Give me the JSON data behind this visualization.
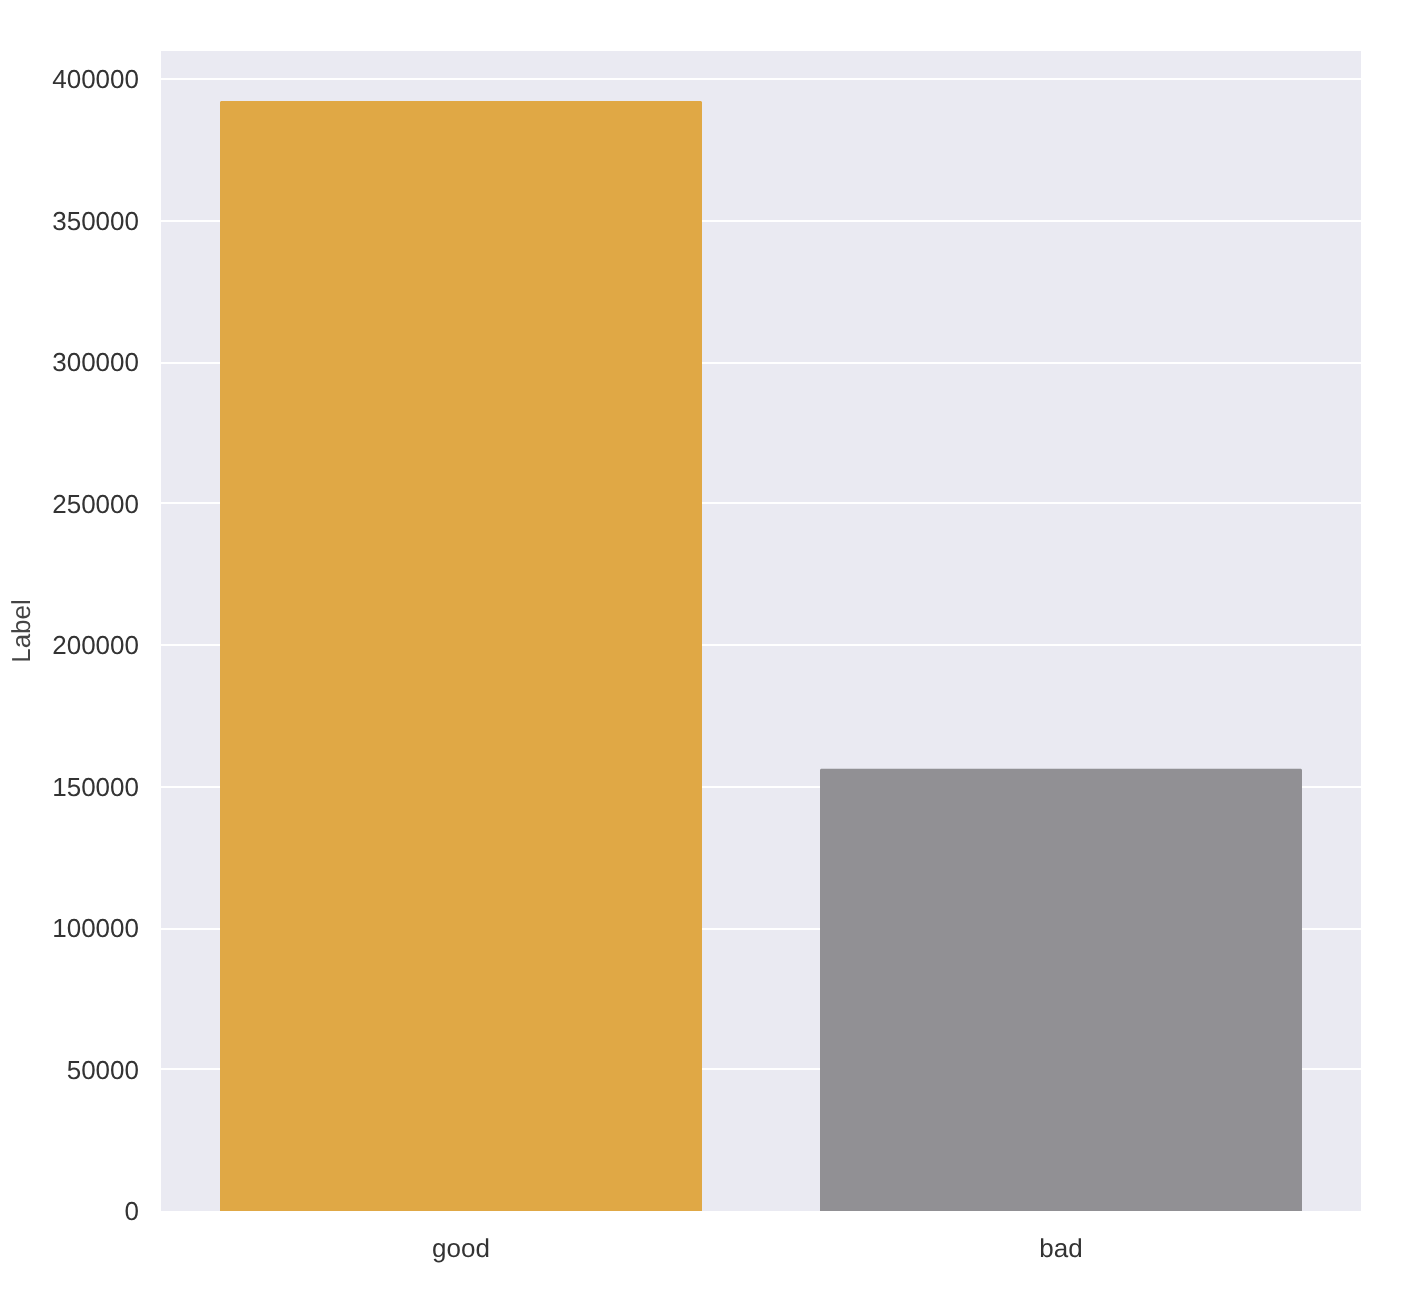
{
  "chart_data": {
    "type": "bar",
    "ylabel": "Label",
    "categories": [
      "good",
      "bad"
    ],
    "values": [
      392000,
      156000
    ],
    "colors": [
      "#e0a845",
      "#919094"
    ],
    "ylim": [
      0,
      410000
    ],
    "yticks": [
      0,
      50000,
      100000,
      150000,
      200000,
      250000,
      300000,
      350000,
      400000
    ],
    "grid": "y"
  }
}
